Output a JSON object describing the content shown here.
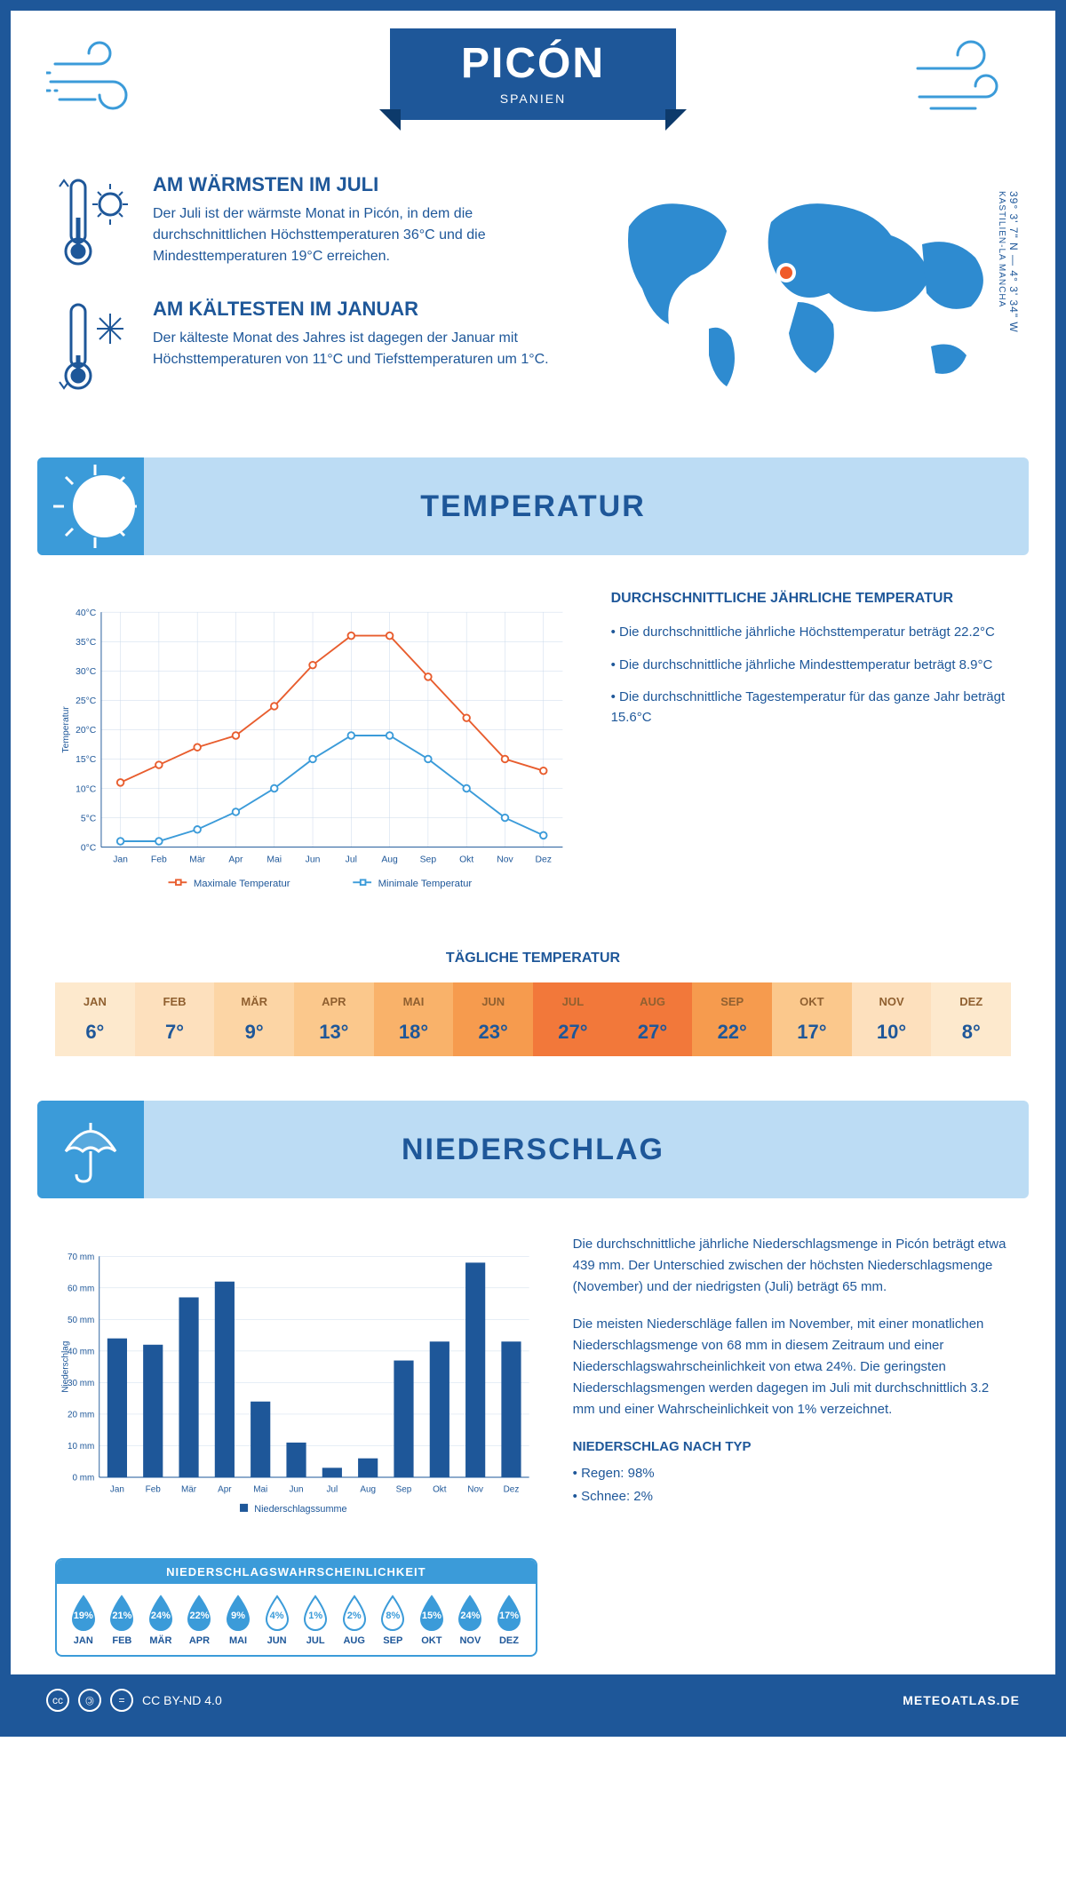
{
  "header": {
    "title": "PICÓN",
    "country": "SPANIEN"
  },
  "coords": {
    "lat": "39° 3' 7\" N — 4° 3' 34\" W",
    "region": "KASTILIEN-LA MANCHA"
  },
  "facts": {
    "hot": {
      "title": "AM WÄRMSTEN IM JULI",
      "text": "Der Juli ist der wärmste Monat in Picón, in dem die durchschnittlichen Höchsttemperaturen 36°C und die Mindesttemperaturen 19°C erreichen."
    },
    "cold": {
      "title": "AM KÄLTESTEN IM JANUAR",
      "text": "Der kälteste Monat des Jahres ist dagegen der Januar mit Höchsttemperaturen von 11°C und Tiefsttemperaturen um 1°C."
    }
  },
  "months": [
    "Jan",
    "Feb",
    "Mär",
    "Apr",
    "Mai",
    "Jun",
    "Jul",
    "Aug",
    "Sep",
    "Okt",
    "Nov",
    "Dez"
  ],
  "months_upper": [
    "JAN",
    "FEB",
    "MÄR",
    "APR",
    "MAI",
    "JUN",
    "JUL",
    "AUG",
    "SEP",
    "OKT",
    "NOV",
    "DEZ"
  ],
  "temperature": {
    "section_title": "TEMPERATUR",
    "chart": {
      "type": "line",
      "ylabel": "Temperatur",
      "ylim": [
        0,
        40
      ],
      "ytick_step": 5,
      "yunit": "°C",
      "max_color": "#e85d2e",
      "min_color": "#3b9bd9",
      "grid_color": "#c8d8ea",
      "axis_color": "#1e5799",
      "max_values": [
        11,
        14,
        17,
        19,
        24,
        31,
        36,
        36,
        29,
        22,
        15,
        13
      ],
      "min_values": [
        1,
        1,
        3,
        6,
        10,
        15,
        19,
        19,
        15,
        10,
        5,
        2
      ],
      "legend_max": "Maximale Temperatur",
      "legend_min": "Minimale Temperatur"
    },
    "info": {
      "title": "DURCHSCHNITTLICHE JÄHRLICHE TEMPERATUR",
      "b1": "• Die durchschnittliche jährliche Höchsttemperatur beträgt 22.2°C",
      "b2": "• Die durchschnittliche jährliche Mindesttemperatur beträgt 8.9°C",
      "b3": "• Die durchschnittliche Tagestemperatur für das ganze Jahr beträgt 15.6°C"
    },
    "daily": {
      "title": "TÄGLICHE TEMPERATUR",
      "values": [
        "6°",
        "7°",
        "9°",
        "13°",
        "18°",
        "23°",
        "27°",
        "27°",
        "22°",
        "17°",
        "10°",
        "8°"
      ],
      "colors": [
        "#fde9cd",
        "#fde0bd",
        "#fcd5a5",
        "#fbc88c",
        "#f9b26a",
        "#f69b4e",
        "#f2783a",
        "#f2783a",
        "#f69b4e",
        "#fbc88c",
        "#fde0bd",
        "#fde9cd"
      ]
    }
  },
  "precip": {
    "section_title": "NIEDERSCHLAG",
    "chart": {
      "type": "bar",
      "ylabel": "Niederschlag",
      "ylim": [
        0,
        70
      ],
      "ytick_step": 10,
      "yunit": " mm",
      "bar_color": "#1e5799",
      "values": [
        44,
        42,
        57,
        62,
        24,
        11,
        3,
        6,
        37,
        43,
        68,
        43
      ],
      "legend": "Niederschlagssumme"
    },
    "text1": "Die durchschnittliche jährliche Niederschlagsmenge in Picón beträgt etwa 439 mm. Der Unterschied zwischen der höchsten Niederschlagsmenge (November) und der niedrigsten (Juli) beträgt 65 mm.",
    "text2": "Die meisten Niederschläge fallen im November, mit einer monatlichen Niederschlagsmenge von 68 mm in diesem Zeitraum und einer Niederschlagswahrscheinlichkeit von etwa 24%. Die geringsten Niederschlagsmengen werden dagegen im Juli mit durchschnittlich 3.2 mm und einer Wahrscheinlichkeit von 1% verzeichnet.",
    "type_title": "NIEDERSCHLAG NACH TYP",
    "type1": "• Regen: 98%",
    "type2": "• Schnee: 2%",
    "prob": {
      "title": "NIEDERSCHLAGSWAHRSCHEINLICHKEIT",
      "values": [
        "19%",
        "21%",
        "24%",
        "22%",
        "9%",
        "4%",
        "1%",
        "2%",
        "8%",
        "15%",
        "24%",
        "17%"
      ],
      "filled": [
        true,
        true,
        true,
        true,
        true,
        false,
        false,
        false,
        false,
        true,
        true,
        true
      ],
      "fill_color": "#3b9bd9",
      "empty_color": "#ffffff",
      "stroke": "#3b9bd9"
    }
  },
  "footer": {
    "license": "CC BY-ND 4.0",
    "site": "METEOATLAS.DE"
  }
}
